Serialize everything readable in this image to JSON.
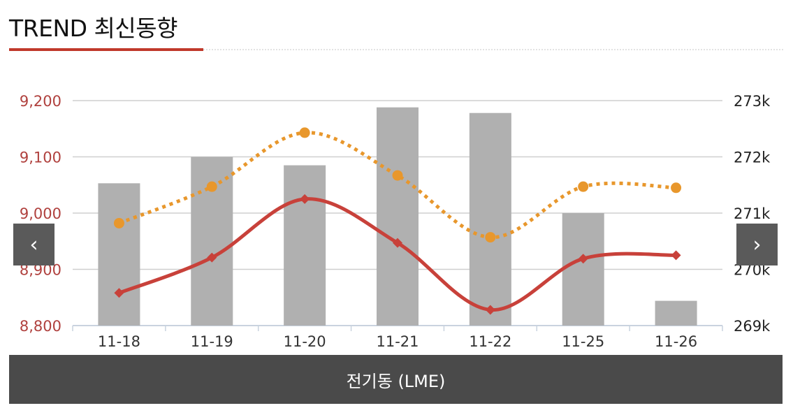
{
  "header": {
    "title": "TREND 최신동향"
  },
  "nav": {
    "prev_icon": "chevron-left-icon",
    "next_icon": "chevron-right-icon",
    "prev_glyph": "‹",
    "next_glyph": "›"
  },
  "footer": {
    "label": "전기동 (LME)"
  },
  "colors": {
    "accent": "#c0392b",
    "bars": "#b0b0b0",
    "dotted_line": "#e8972c",
    "solid_line": "#c8413a",
    "left_axis_text": "#b0413e",
    "right_axis_text": "#222222"
  },
  "chart_data": {
    "type": "bar",
    "categories": [
      "11-18",
      "11-19",
      "11-20",
      "11-21",
      "11-22",
      "11-25",
      "11-26"
    ],
    "series": [
      {
        "type": "bar",
        "axis": "right",
        "values": [
          271530,
          272000,
          271850,
          272880,
          272780,
          271000,
          269440
        ]
      },
      {
        "type": "line",
        "axis": "left",
        "style": "solid",
        "marker": "diamond",
        "values": [
          8858,
          8921,
          9025,
          8947,
          8828,
          8919,
          8925
        ]
      },
      {
        "type": "line",
        "axis": "left",
        "style": "dotted",
        "marker": "circle",
        "values": [
          8982,
          9047,
          9143,
          9067,
          8957,
          9047,
          9045
        ]
      }
    ],
    "left_axis": {
      "min": 8800,
      "max": 9200,
      "ticks": [
        "8,800",
        "8,900",
        "9,000",
        "9,100",
        "9,200"
      ]
    },
    "right_axis": {
      "min": 269000,
      "max": 273000,
      "ticks": [
        "269k",
        "270k",
        "271k",
        "272k",
        "273k"
      ]
    },
    "grid": true,
    "legend": "none"
  }
}
